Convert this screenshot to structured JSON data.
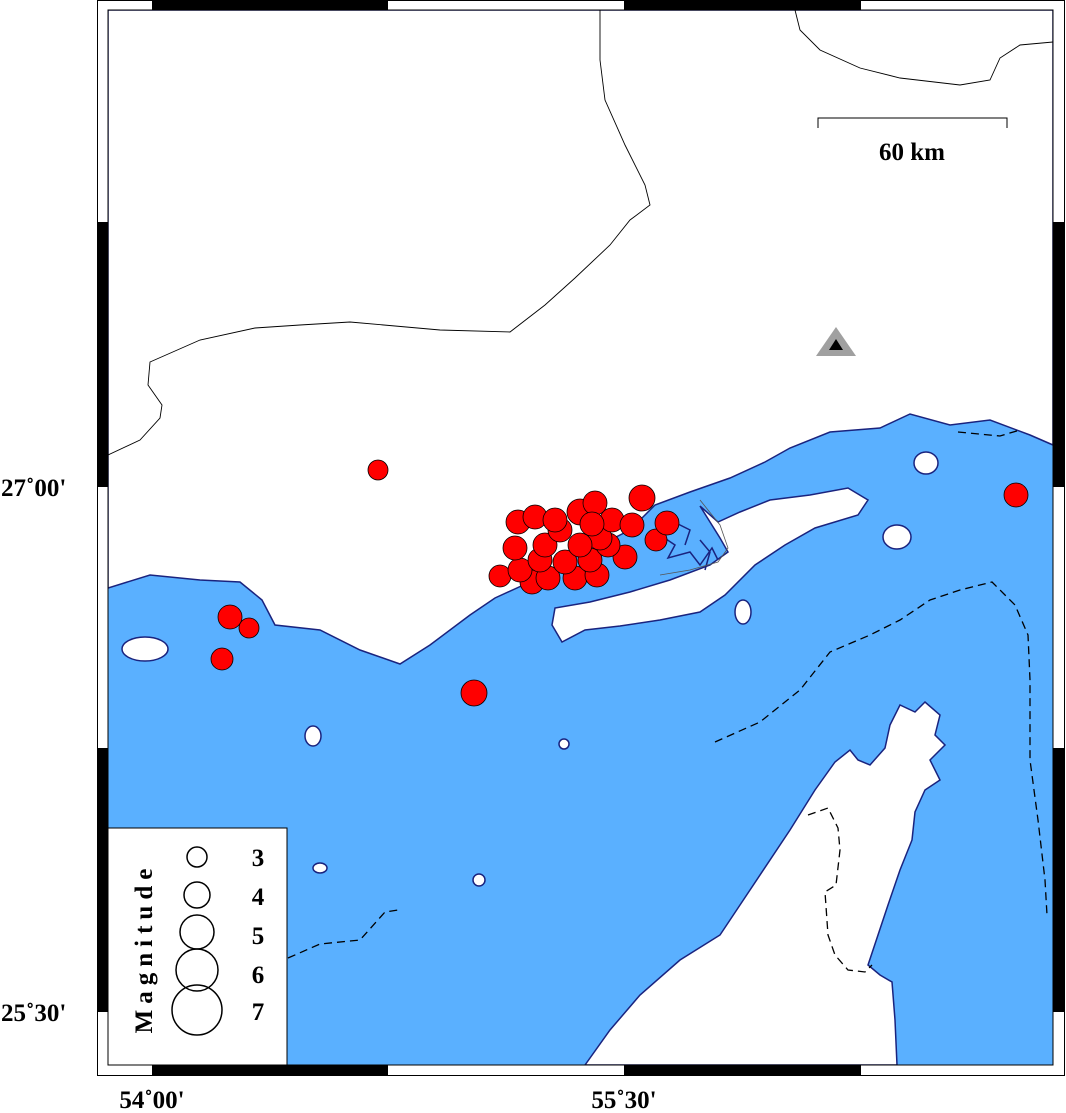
{
  "map": {
    "colors": {
      "sea": "#5AB0FF",
      "land": "#FFFFFF",
      "coastline": "#1A237E",
      "event": "#FF0000",
      "station": "#A0A0A0"
    },
    "lat_labels": [
      "27˚00'",
      "25˚30'"
    ],
    "lon_labels": [
      "54˚00'",
      "55˚30'"
    ],
    "scale_bar": {
      "label": "60 km"
    },
    "station": {
      "icon": "triangle-icon"
    },
    "legend": {
      "title": "Magnitude",
      "items": [
        {
          "label": "3",
          "mag": 3
        },
        {
          "label": "4",
          "mag": 4
        },
        {
          "label": "5",
          "mag": 5
        },
        {
          "label": "6",
          "mag": 6
        },
        {
          "label": "7",
          "mag": 7
        }
      ]
    }
  }
}
